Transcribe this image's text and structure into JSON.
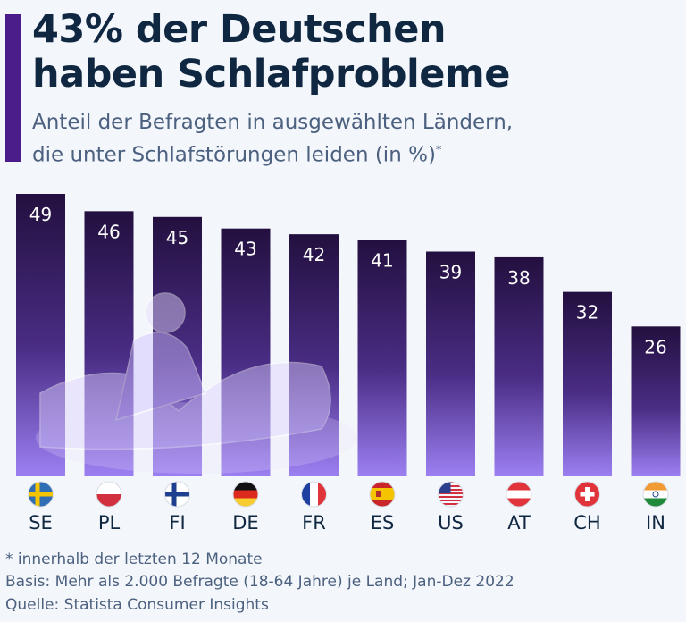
{
  "title_line1": "43% der Deutschen",
  "title_line2": "haben Schlafprobleme",
  "subtitle_line1": "Anteil der Befragten in ausgewählten Ländern,",
  "subtitle_line2": "die unter Schlafstörungen leiden (in %)",
  "subtitle_mark": "*",
  "colors": {
    "accent": "#4b1d8a",
    "bar_top": "#23103f",
    "bar_bottom": "#9c80f2",
    "title": "#0f2740",
    "text": "#4c6180"
  },
  "chart_data": {
    "type": "bar",
    "categories": [
      "SE",
      "PL",
      "FI",
      "DE",
      "FR",
      "ES",
      "US",
      "AT",
      "CH",
      "IN"
    ],
    "flags": [
      "sweden-flag-icon",
      "poland-flag-icon",
      "finland-flag-icon",
      "germany-flag-icon",
      "france-flag-icon",
      "spain-flag-icon",
      "usa-flag-icon",
      "austria-flag-icon",
      "switzerland-flag-icon",
      "india-flag-icon"
    ],
    "values": [
      49,
      46,
      45,
      43,
      42,
      41,
      39,
      38,
      32,
      26
    ],
    "ylim": [
      0,
      49
    ],
    "grid": false,
    "data_labels": true
  },
  "footnotes": {
    "note": "* innerhalb der letzten 12 Monate",
    "basis": "Basis: Mehr als 2.000 Befragte (18-64 Jahre) je Land; Jan-Dez 2022",
    "source": "Quelle: Statista Consumer Insights"
  }
}
